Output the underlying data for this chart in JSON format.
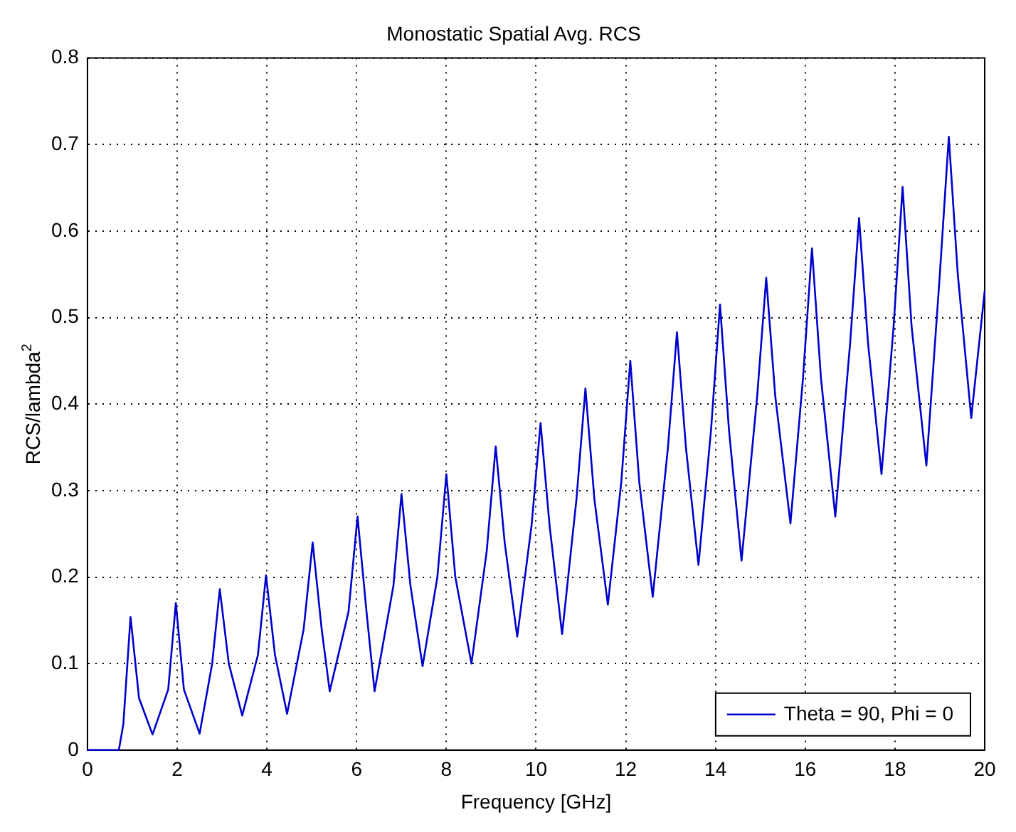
{
  "chart_data": {
    "type": "line",
    "title": "Monostatic Spatial Avg. RCS",
    "xlabel": "Frequency [GHz]",
    "ylabel": "RCS/lambda$^{2}$",
    "xlim": [
      0,
      20
    ],
    "xticks": [
      0,
      2,
      4,
      6,
      8,
      10,
      12,
      14,
      16,
      18,
      20
    ],
    "ylim": [
      0,
      0.8
    ],
    "yticks": [
      0,
      0.1,
      0.2,
      0.3,
      0.4,
      0.5,
      0.6,
      0.7,
      0.8
    ],
    "grid": true,
    "legend": "bottom right",
    "line_style": "solid",
    "marker": "none",
    "series": [
      {
        "name": "Theta = 90, Phi = 0",
        "color": "#0000cc",
        "x": [
          0,
          0.7,
          0.8,
          0.96,
          1.15,
          1.45,
          1.8,
          1.97,
          2.15,
          2.5,
          2.78,
          2.95,
          3.15,
          3.45,
          3.8,
          3.98,
          4.18,
          4.45,
          4.82,
          5.02,
          5.22,
          5.4,
          5.82,
          6.02,
          6.22,
          6.4,
          6.82,
          7.0,
          7.2,
          7.47,
          7.8,
          8.0,
          8.2,
          8.56,
          8.9,
          9.1,
          9.3,
          9.58,
          9.9,
          10.1,
          10.3,
          10.58,
          10.9,
          11.1,
          11.3,
          11.6,
          11.9,
          12.1,
          12.3,
          12.6,
          12.94,
          13.14,
          13.34,
          13.62,
          13.9,
          14.1,
          14.3,
          14.58,
          14.93,
          15.13,
          15.33,
          15.67,
          15.95,
          16.15,
          16.35,
          16.67,
          17.0,
          17.2,
          17.4,
          17.7,
          17.97,
          18.17,
          18.37,
          18.7,
          19.0,
          19.2,
          19.4,
          19.7,
          20
        ],
        "values": [
          0,
          0,
          0.03,
          0.154,
          0.06,
          0.018,
          0.07,
          0.17,
          0.07,
          0.019,
          0.1,
          0.186,
          0.1,
          0.04,
          0.11,
          0.202,
          0.11,
          0.042,
          0.14,
          0.24,
          0.14,
          0.068,
          0.16,
          0.27,
          0.16,
          0.068,
          0.19,
          0.296,
          0.19,
          0.097,
          0.2,
          0.319,
          0.2,
          0.1,
          0.23,
          0.351,
          0.24,
          0.131,
          0.26,
          0.378,
          0.26,
          0.134,
          0.29,
          0.418,
          0.29,
          0.168,
          0.31,
          0.45,
          0.31,
          0.177,
          0.35,
          0.483,
          0.35,
          0.214,
          0.37,
          0.515,
          0.37,
          0.219,
          0.41,
          0.546,
          0.41,
          0.262,
          0.43,
          0.58,
          0.43,
          0.27,
          0.47,
          0.615,
          0.47,
          0.319,
          0.49,
          0.651,
          0.49,
          0.329,
          0.55,
          0.709,
          0.55,
          0.384,
          0.531
        ]
      }
    ]
  }
}
